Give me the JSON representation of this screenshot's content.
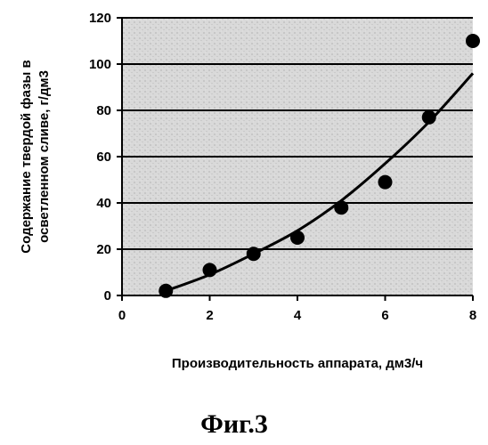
{
  "chart_data": {
    "type": "scatter",
    "xlabel": "Производительность аппарата, дм3/ч",
    "ylabel_lines": [
      "Содержание твердой фазы в",
      "осветленном сливе, г/дм3"
    ],
    "xlim": [
      0,
      8
    ],
    "ylim": [
      0,
      120
    ],
    "x_ticks": [
      0,
      2,
      4,
      6,
      8
    ],
    "y_ticks": [
      0,
      20,
      40,
      60,
      80,
      100,
      120
    ],
    "grid": "horizontal",
    "plot_background": "stippled light gray",
    "series": [
      {
        "kind": "points",
        "x": [
          1,
          2,
          3,
          4,
          5,
          6,
          7,
          8
        ],
        "y": [
          2,
          11,
          18,
          25,
          38,
          49,
          77,
          110
        ]
      },
      {
        "kind": "trendline",
        "x": [
          1,
          2,
          3,
          4,
          5,
          6,
          7,
          8
        ],
        "y": [
          2,
          9,
          18,
          28,
          41,
          57,
          75,
          96
        ]
      }
    ]
  },
  "caption": "Фиг.3",
  "colors": {
    "plot_bg": "#d8d8d8",
    "ink": "#000000"
  }
}
